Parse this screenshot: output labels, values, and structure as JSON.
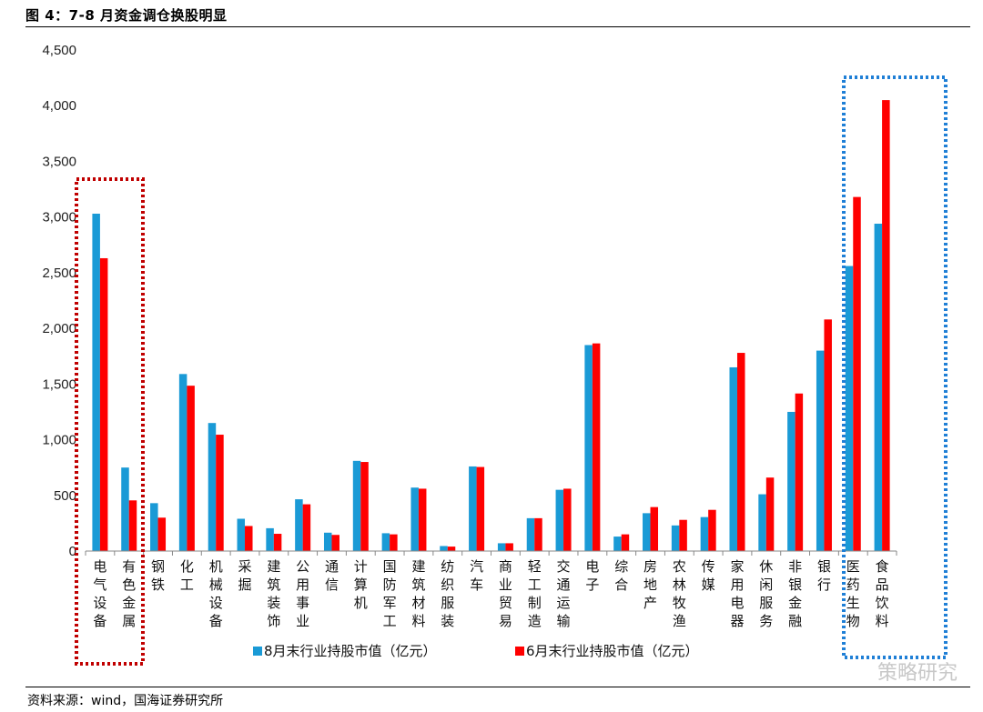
{
  "header": {
    "title": "图 4：7-8 月资金调仓换股明显"
  },
  "footer": {
    "source": "资料来源：wind，国海证券研究所"
  },
  "watermark": {
    "text": "策略研究"
  },
  "colors": {
    "series1": "#1a9ad6",
    "series2": "#ff0000",
    "box_left": "#c00000",
    "box_right": "#1f7fd6"
  },
  "chart_data": {
    "type": "bar",
    "categories": [
      "电气设备",
      "有色金属",
      "钢铁",
      "化工",
      "机械设备",
      "采掘",
      "建筑装饰",
      "公用事业",
      "通信",
      "计算机",
      "国防军工",
      "建筑材料",
      "纺织服装",
      "汽车",
      "商业贸易",
      "轻工制造",
      "交通运输",
      "电子",
      "综合",
      "房地产",
      "农林牧渔",
      "传媒",
      "家用电器",
      "休闲服务",
      "非银金融",
      "银行",
      "医药生物",
      "食品饮料"
    ],
    "series": [
      {
        "name": "8月末行业持股市值（亿元）",
        "values": [
          3030,
          750,
          430,
          1590,
          1150,
          290,
          205,
          465,
          165,
          810,
          160,
          570,
          45,
          760,
          70,
          295,
          550,
          1850,
          130,
          340,
          230,
          305,
          1650,
          510,
          1250,
          1800,
          2560,
          2940
        ]
      },
      {
        "name": "6月末行业持股市值（亿元）",
        "values": [
          2630,
          455,
          300,
          1485,
          1045,
          225,
          155,
          420,
          145,
          800,
          150,
          560,
          40,
          755,
          70,
          295,
          560,
          1865,
          150,
          395,
          280,
          370,
          1780,
          660,
          1415,
          2080,
          3180,
          4050
        ]
      }
    ],
    "ylim": [
      0,
      4500
    ],
    "yticks": [
      "0",
      "500",
      "1,000",
      "1,500",
      "2,000",
      "2,500",
      "3,000",
      "3,500",
      "4,000",
      "4,500"
    ],
    "highlight_groups": [
      {
        "categories": [
          "电气设备",
          "有色金属"
        ],
        "style": "dotted-red"
      },
      {
        "categories": [
          "医药生物",
          "食品饮料"
        ],
        "style": "dotted-blue"
      }
    ],
    "legend_position": "bottom"
  }
}
